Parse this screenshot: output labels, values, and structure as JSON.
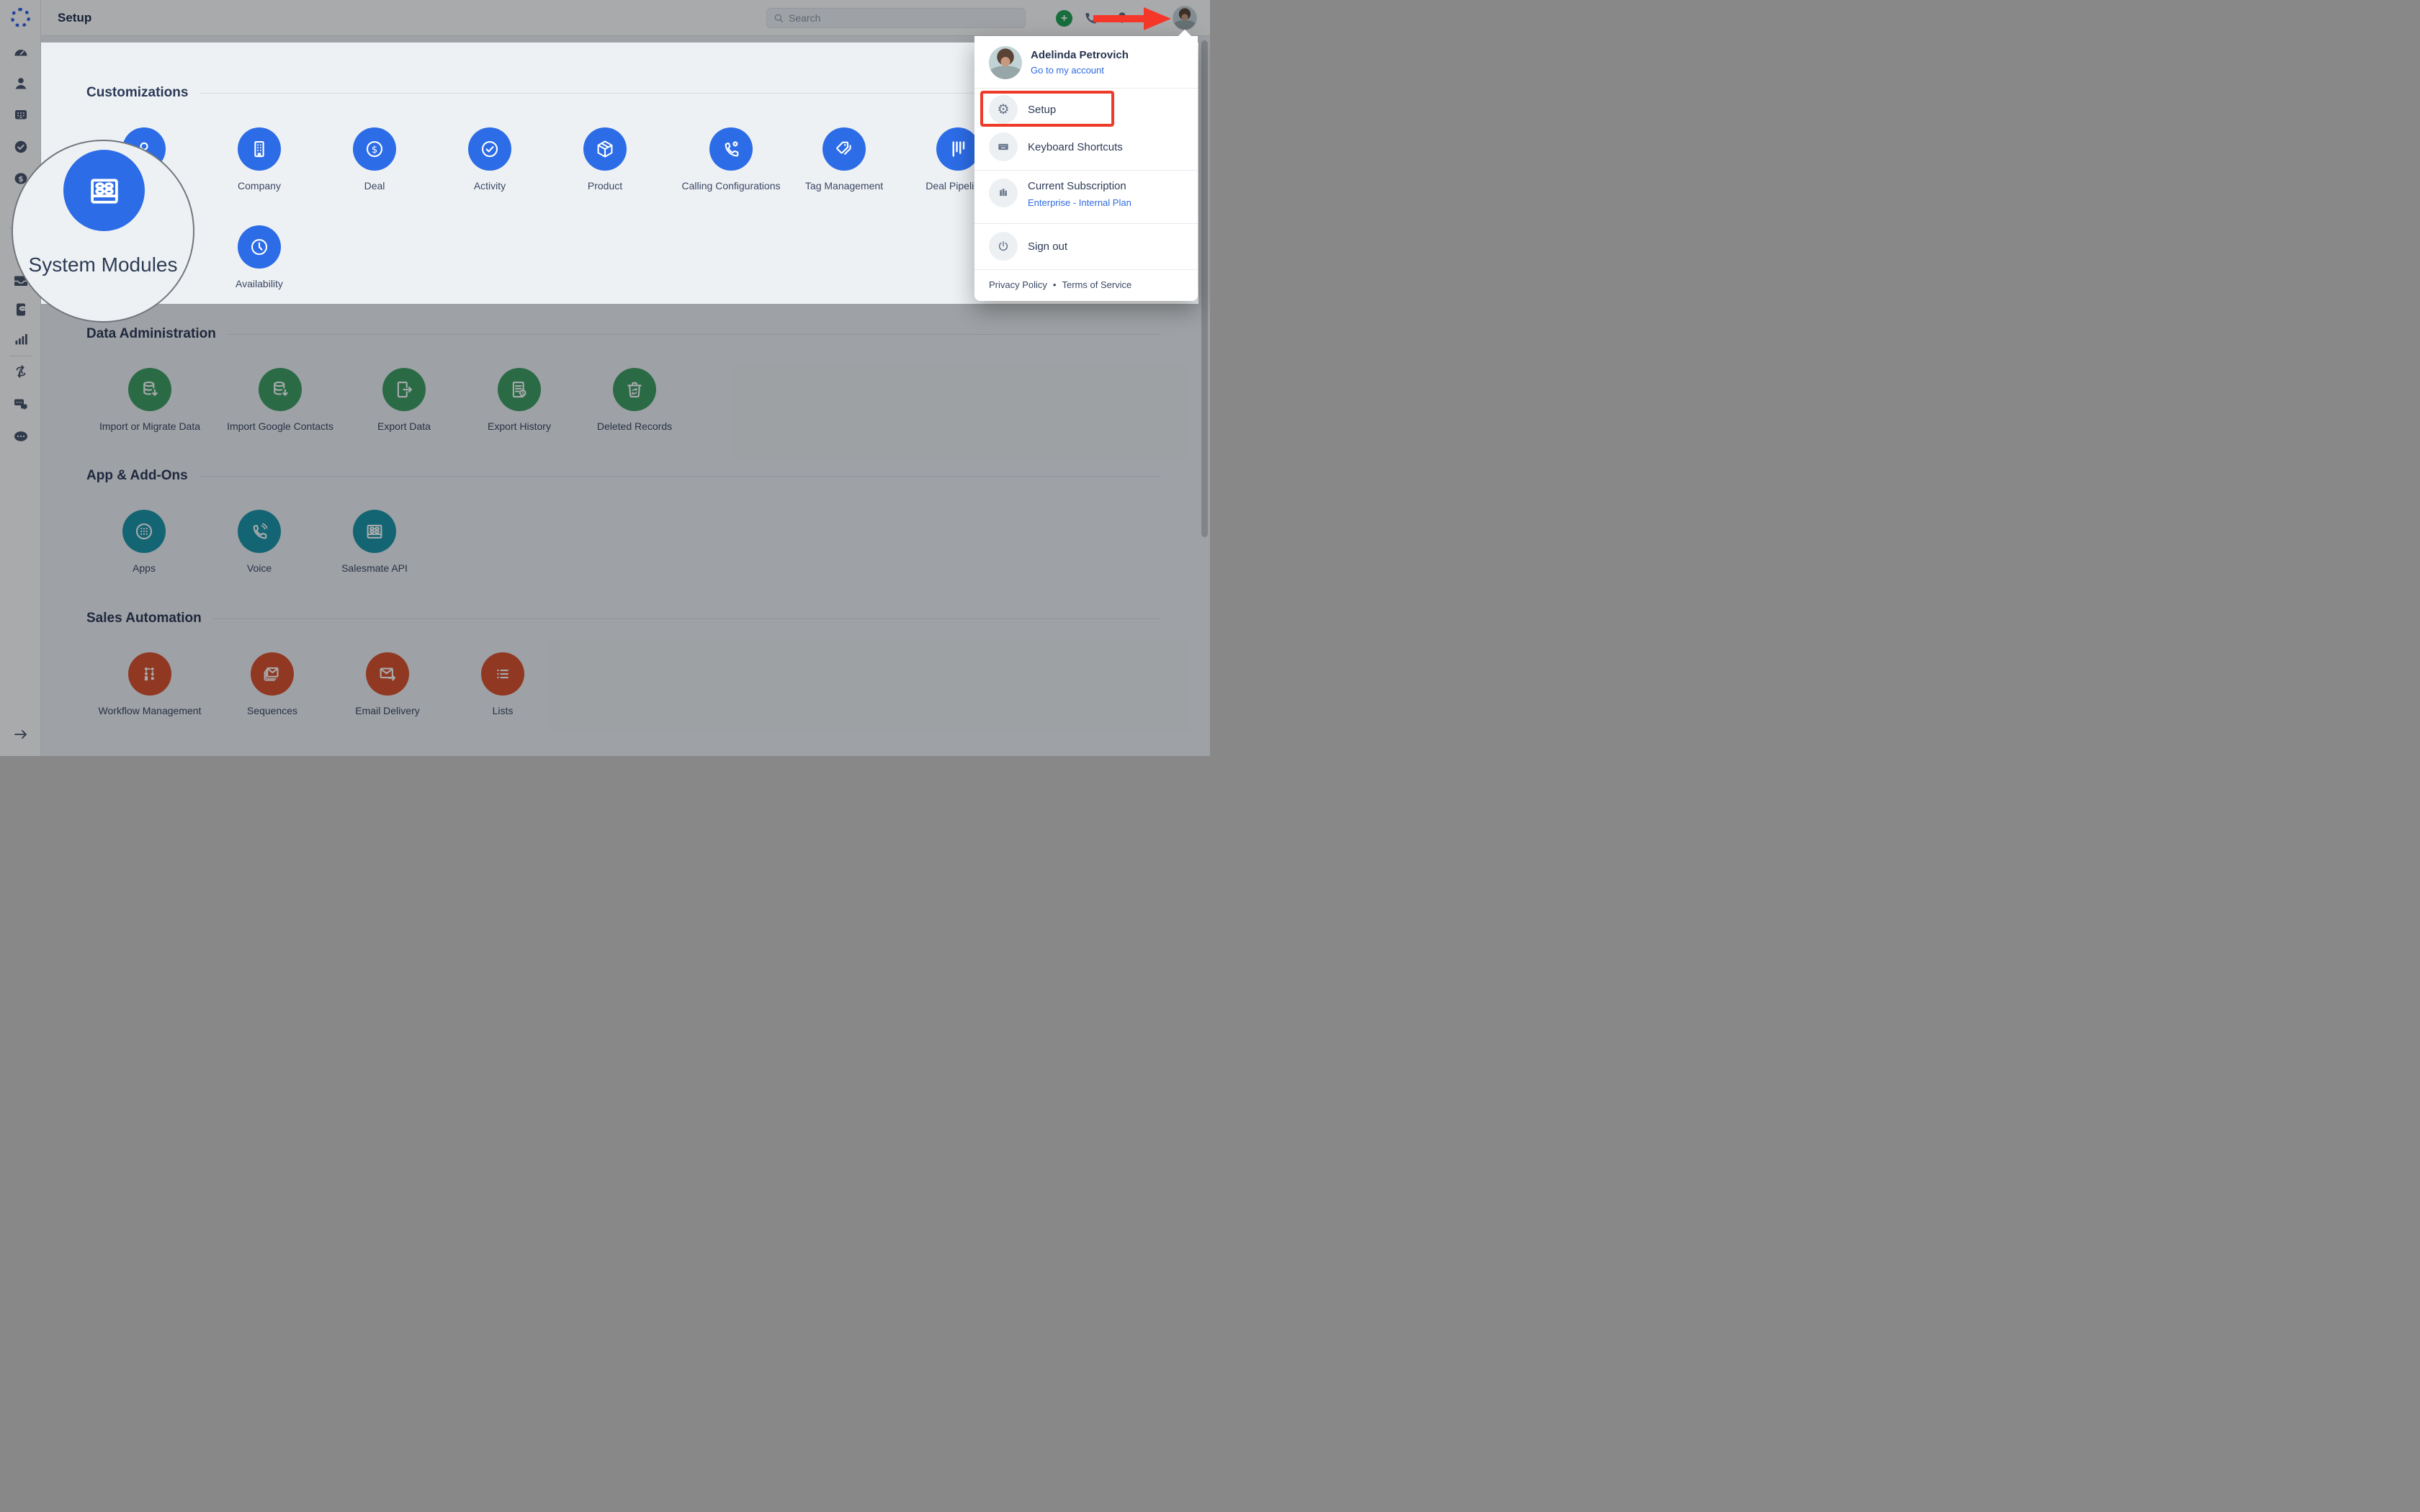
{
  "topbar": {
    "title": "Setup",
    "search_placeholder": "Search",
    "add_label": "+"
  },
  "sidebar": {
    "icons": [
      "dashboard",
      "contacts",
      "companies",
      "activities",
      "deals",
      "products",
      "emails",
      "inbox",
      "texts",
      "reports",
      "automation",
      "chats",
      "more",
      "expand"
    ]
  },
  "magnifier": {
    "label": "System Modules"
  },
  "customizations": {
    "title": "Customizations",
    "row1": [
      {
        "label": "",
        "icon": "contact"
      },
      {
        "label": "Company",
        "icon": "company"
      },
      {
        "label": "Deal",
        "icon": "deal"
      },
      {
        "label": "Activity",
        "icon": "activity"
      },
      {
        "label": "Product",
        "icon": "product"
      },
      {
        "label": "Calling Configurations",
        "icon": "calling-configurations"
      },
      {
        "label": "Tag Management",
        "icon": "tag-management"
      },
      {
        "label": "Deal Pipelines",
        "icon": "deal-pipelines"
      }
    ],
    "row2": [
      {
        "label": "Availability",
        "icon": "availability"
      }
    ]
  },
  "data_section": {
    "title": "Data Administration",
    "items": [
      {
        "label": "Import or Migrate Data",
        "icon": "db-import"
      },
      {
        "label": "Import Google Contacts",
        "icon": "db-import"
      },
      {
        "label": "Export Data",
        "icon": "export-data"
      },
      {
        "label": "Export History",
        "icon": "export-history"
      },
      {
        "label": "Deleted Records",
        "icon": "deleted-records"
      }
    ]
  },
  "apps_section": {
    "title": "App & Add-Ons",
    "items": [
      {
        "label": "Apps",
        "icon": "apps"
      },
      {
        "label": "Voice",
        "icon": "voice"
      },
      {
        "label": "Salesmate API",
        "icon": "module"
      }
    ]
  },
  "sales_section": {
    "title": "Sales Automation",
    "items": [
      {
        "label": "Workflow Management",
        "icon": "workflow"
      },
      {
        "label": "Sequences",
        "icon": "sequences"
      },
      {
        "label": "Email Delivery",
        "icon": "email-delivery"
      },
      {
        "label": "Lists",
        "icon": "lists"
      }
    ]
  },
  "menu": {
    "user_name": "Adelinda Petrovich",
    "account_link": "Go to my account",
    "setup": "Setup",
    "keyboard": "Keyboard Shortcuts",
    "subscription_title": "Current Subscription",
    "subscription_plan": "Enterprise - Internal Plan",
    "sign_out": "Sign out",
    "privacy": "Privacy Policy",
    "dot": "•",
    "terms": "Terms of Service"
  },
  "colors": {
    "accent_blue": "#2c6ce6",
    "green": "#3d9e63",
    "teal": "#1b95a8",
    "red_orange": "#d9502c",
    "annotation_red": "#f5372a",
    "link_blue": "#2f6be0",
    "plus_green": "#1fa152"
  }
}
